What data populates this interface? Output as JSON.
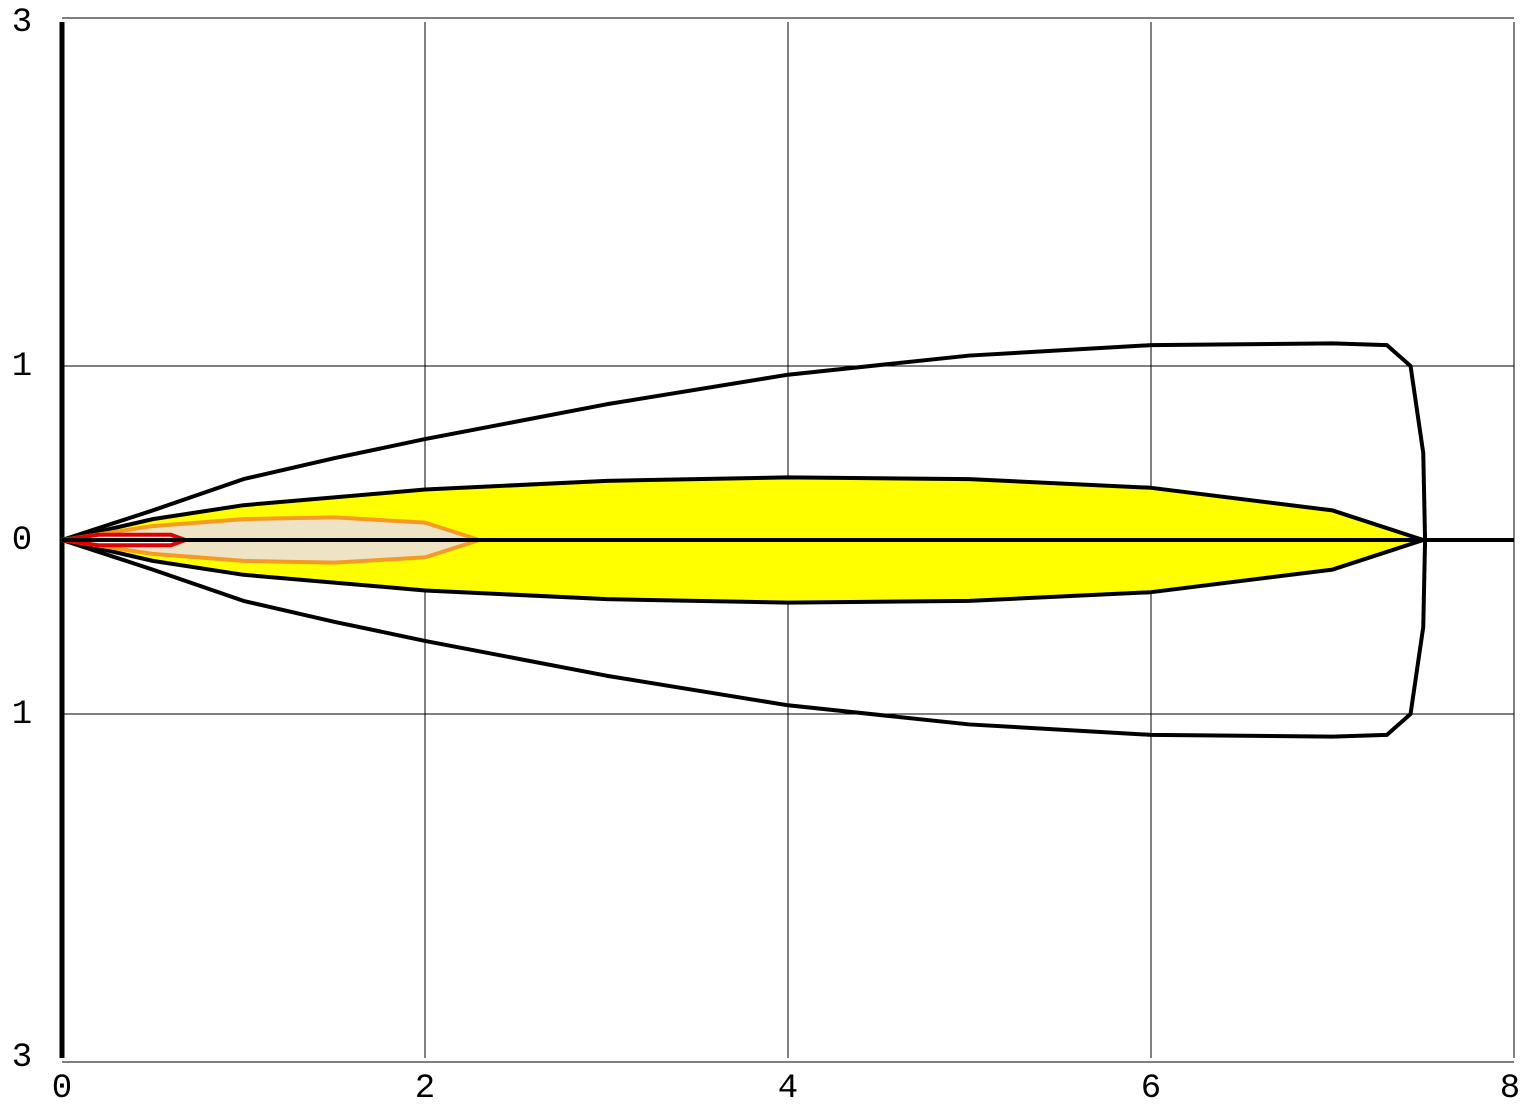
{
  "chart_data": {
    "type": "contour",
    "xlim": [
      0,
      8
    ],
    "xticks": [
      0,
      2,
      4,
      6,
      8
    ],
    "ylim": [
      -3,
      3
    ],
    "yticks": [
      3,
      1,
      0,
      {
        "value": -1,
        "label": "1"
      },
      {
        "value": -3,
        "label": "3"
      }
    ],
    "grid": true,
    "series": [
      {
        "color": "#000000",
        "fill": "none",
        "x": [
          0,
          0.5,
          1,
          1.5,
          2,
          3,
          4,
          5,
          6,
          7,
          7.3,
          7.43,
          7.5,
          7.51,
          7.5,
          7.43,
          7.3,
          7,
          6,
          5,
          4,
          3,
          2,
          1.5,
          1,
          0.5,
          0
        ],
        "values": [
          0,
          0.17,
          0.35,
          0.47,
          0.58,
          0.78,
          0.95,
          1.06,
          1.12,
          1.13,
          1.12,
          1.0,
          0.5,
          0,
          -0.5,
          -1.0,
          -1.12,
          -1.13,
          -1.12,
          -1.06,
          -0.95,
          -0.78,
          -0.58,
          -0.47,
          -0.35,
          -0.17,
          0
        ]
      },
      {
        "color": "#000000",
        "fill": "#ffff00",
        "x": [
          0,
          0.5,
          1,
          2,
          3,
          4,
          5,
          6,
          7,
          7.5,
          7,
          6,
          5,
          4,
          3,
          2,
          1,
          0.5,
          0
        ],
        "values": [
          0,
          0.12,
          0.2,
          0.29,
          0.34,
          0.36,
          0.35,
          0.3,
          0.17,
          0,
          -0.17,
          -0.3,
          -0.35,
          -0.36,
          -0.34,
          -0.29,
          -0.2,
          -0.12,
          0
        ]
      },
      {
        "color": "#f59a23",
        "fill": "#eee3c4",
        "x": [
          0,
          0.5,
          1,
          1.5,
          2,
          2.3,
          2,
          1.5,
          1,
          0.5,
          0
        ],
        "values": [
          0,
          0.08,
          0.12,
          0.13,
          0.1,
          0,
          -0.1,
          -0.13,
          -0.12,
          -0.08,
          0
        ]
      },
      {
        "color": "#e00000",
        "fill": "#ffffff",
        "x": [
          0,
          0.2,
          0.6,
          0.68,
          0.6,
          0.2,
          0
        ],
        "values": [
          0,
          0.03,
          0.03,
          0,
          -0.03,
          -0.03,
          0
        ]
      },
      {
        "color": "#000000",
        "fill": "none",
        "x": [
          0,
          8
        ],
        "values": [
          0,
          0
        ]
      }
    ]
  }
}
